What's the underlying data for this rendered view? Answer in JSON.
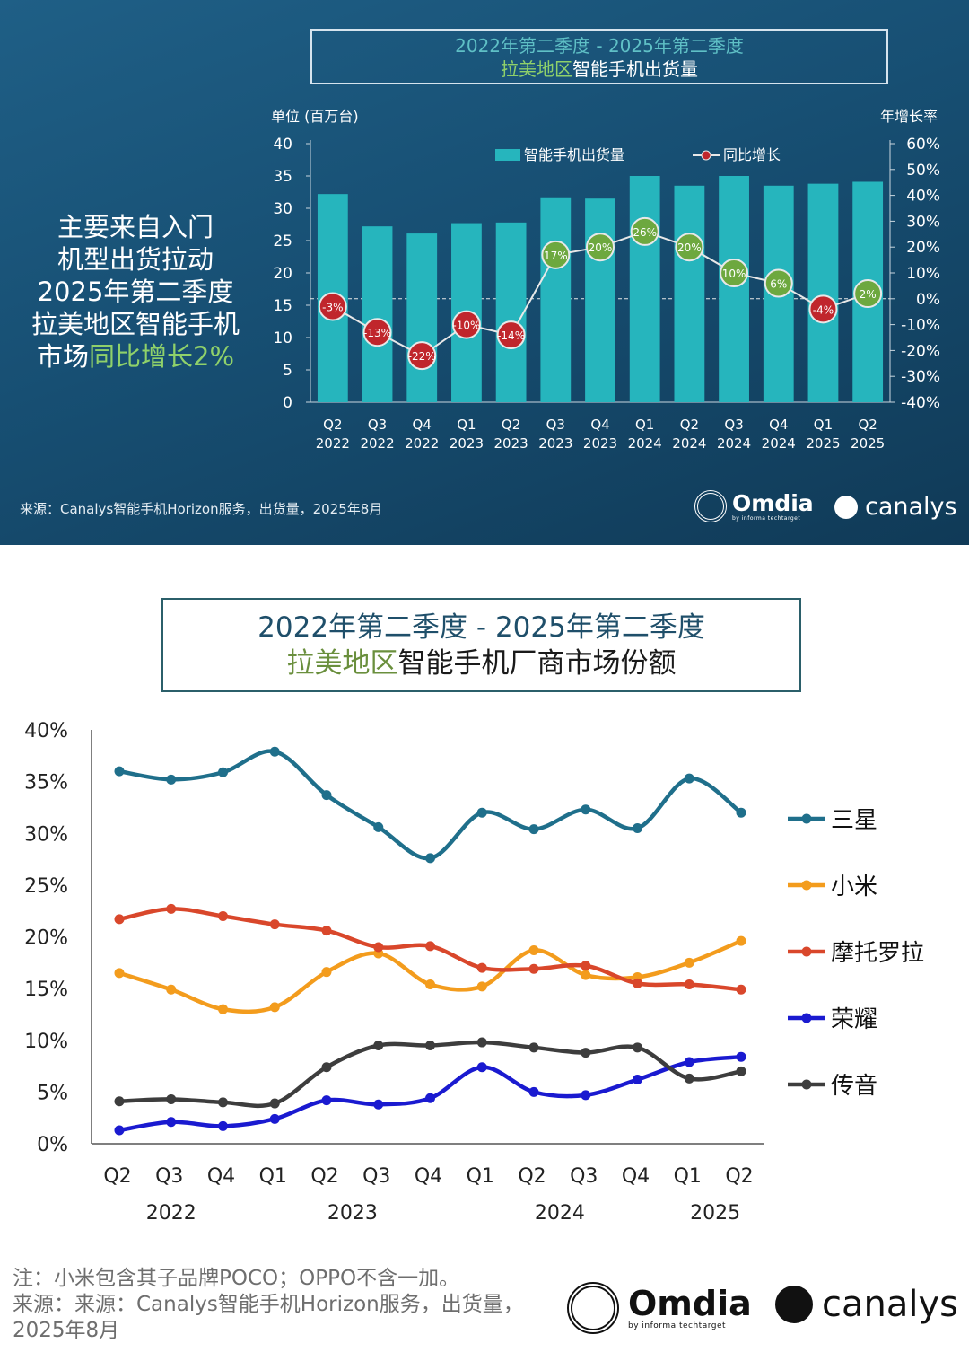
{
  "chart_data": [
    {
      "type": "bar+line",
      "title_line1": "2022年第二季度 - 2025年第二季度",
      "title_region": "拉美地区",
      "title_rest": "智能手机出货量",
      "ylabel_left": "单位 (百万台)",
      "ylabel_right": "年增长率",
      "ylim_left": [
        0,
        40
      ],
      "ylim_right": [
        -40,
        60
      ],
      "left_ticks": [
        "40",
        "35",
        "30",
        "25",
        "20",
        "15",
        "10",
        "5",
        "0"
      ],
      "right_ticks": [
        "60%",
        "50%",
        "40%",
        "30%",
        "20%",
        "10%",
        "0%",
        "-10%",
        "-20%",
        "-30%",
        "-40%"
      ],
      "categories_q": [
        "Q2",
        "Q3",
        "Q4",
        "Q1",
        "Q2",
        "Q3",
        "Q4",
        "Q1",
        "Q2",
        "Q3",
        "Q4",
        "Q1",
        "Q2"
      ],
      "categories_y": [
        "2022",
        "2022",
        "2022",
        "2023",
        "2023",
        "2023",
        "2023",
        "2024",
        "2024",
        "2024",
        "2024",
        "2025",
        "2025"
      ],
      "bar_series_name": "智能手机出货量",
      "line_series_name": "同比增长",
      "shipments": [
        32.2,
        27.2,
        26.1,
        27.7,
        27.8,
        31.7,
        31.5,
        35.0,
        33.5,
        35.0,
        33.5,
        33.8,
        34.1
      ],
      "yoy": [
        -3,
        -13,
        -22,
        -10,
        -14,
        17,
        20,
        26,
        20,
        10,
        6,
        -4,
        2
      ],
      "yoy_labels": [
        "-3%",
        "-13%",
        "-22%",
        "-10%",
        "-14%",
        "17%",
        "20%",
        "26%",
        "20%",
        "10%",
        "6%",
        "-4%",
        "2%"
      ],
      "colors": {
        "bar": "#26b5bd",
        "neg": "#c0262c",
        "pos": "#6da83f",
        "line": "#e8e8e8"
      }
    },
    {
      "type": "line",
      "title_line1": "2022年第二季度 - 2025年第二季度",
      "title_region": "拉美地区",
      "title_rest": "智能手机厂商市场份额",
      "ylim": [
        0,
        40
      ],
      "y_ticks": [
        "40%",
        "35%",
        "30%",
        "25%",
        "20%",
        "15%",
        "10%",
        "5%",
        "0%"
      ],
      "quarters": [
        "Q2",
        "Q3",
        "Q4",
        "Q1",
        "Q2",
        "Q3",
        "Q4",
        "Q1",
        "Q2",
        "Q3",
        "Q4",
        "Q1",
        "Q2"
      ],
      "years": [
        "2022",
        "2023",
        "2024",
        "2025"
      ],
      "series": [
        {
          "name": "三星",
          "color": "#1f6f8b",
          "values": [
            36.0,
            35.2,
            35.9,
            37.9,
            33.7,
            30.6,
            27.6,
            32.0,
            30.4,
            32.3,
            30.5,
            35.3,
            32.0
          ]
        },
        {
          "name": "小米",
          "color": "#f39c1d",
          "values": [
            16.5,
            14.9,
            13.0,
            13.2,
            16.6,
            18.4,
            15.4,
            15.2,
            18.7,
            16.3,
            16.1,
            17.5,
            19.6
          ]
        },
        {
          "name": "摩托罗拉",
          "color": "#d9472b",
          "values": [
            21.7,
            22.7,
            22.0,
            21.2,
            20.6,
            19.0,
            19.1,
            17.0,
            16.9,
            17.2,
            15.5,
            15.4,
            14.9
          ]
        },
        {
          "name": "荣耀",
          "color": "#1a1ad0",
          "values": [
            1.3,
            2.1,
            1.7,
            2.4,
            4.2,
            3.8,
            4.4,
            7.4,
            5.0,
            4.7,
            6.2,
            7.9,
            8.4
          ]
        },
        {
          "name": "传音",
          "color": "#3d3d3d",
          "values": [
            4.1,
            4.3,
            4.0,
            3.9,
            7.4,
            9.5,
            9.5,
            9.8,
            9.3,
            8.8,
            9.3,
            6.3,
            7.0
          ]
        }
      ]
    }
  ],
  "top": {
    "callout_white": "主要来自入门机型出货拉动2025年第二季度拉美地区智能手机市场",
    "callout_l1": "主要来自入门",
    "callout_l2": "机型出货拉动",
    "callout_l3": "2025年第二季度",
    "callout_l4": "拉美地区智能手机",
    "callout_l5a": "市场",
    "callout_l5b": "同比增长2%",
    "source": "来源：Canalys智能手机Horizon服务，出货量，2025年8月"
  },
  "bottom": {
    "note": "注：小米包含其子品牌POCO；OPPO不含一加。",
    "source1": "来源：来源：Canalys智能手机Horizon服务，出货量，",
    "source2": "2025年8月"
  },
  "logos": {
    "omdia": "Omdia",
    "omdia_sub": "by informa techtarget",
    "canalys": "canalys"
  }
}
